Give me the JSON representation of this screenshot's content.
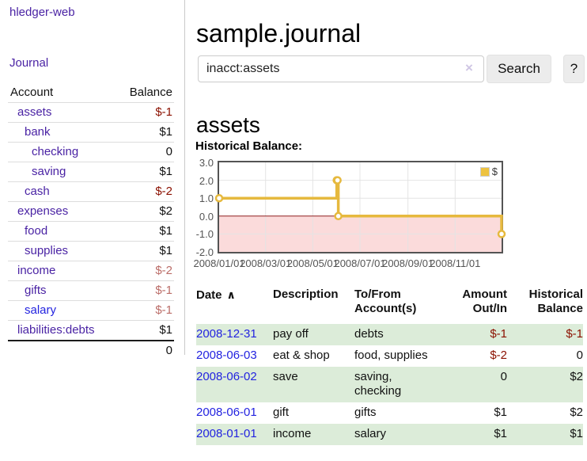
{
  "colors": {
    "accent_purple": "#4a23a4",
    "link_blue": "#2323e0",
    "negative_dark_red": "#8b1000",
    "negative_soft_red": "#bb6d68",
    "row_stripe_green": "#dcecd9"
  },
  "app": {
    "brand": "hledger-web",
    "nav_journal": "Journal"
  },
  "sidebar": {
    "table_headers": {
      "account": "Account",
      "balance": "Balance"
    },
    "accounts": [
      {
        "name": "assets",
        "balance": "$-1",
        "indent": 0,
        "bold": true,
        "balance_class": "neg"
      },
      {
        "name": "bank",
        "balance": "$1",
        "indent": 1,
        "bold": true,
        "balance_class": ""
      },
      {
        "name": "checking",
        "balance": "0",
        "indent": 2,
        "bold": true,
        "balance_class": ""
      },
      {
        "name": "saving",
        "balance": "$1",
        "indent": 2,
        "bold": true,
        "balance_class": ""
      },
      {
        "name": "cash",
        "balance": "$-2",
        "indent": 1,
        "bold": true,
        "balance_class": "neg"
      },
      {
        "name": "expenses",
        "balance": "$2",
        "indent": 0,
        "bold": false,
        "balance_class": ""
      },
      {
        "name": "food",
        "balance": "$1",
        "indent": 1,
        "bold": false,
        "balance_class": ""
      },
      {
        "name": "supplies",
        "balance": "$1",
        "indent": 1,
        "bold": false,
        "balance_class": ""
      },
      {
        "name": "income",
        "balance": "$-2",
        "indent": 0,
        "bold": false,
        "balance_class": "negsoft"
      },
      {
        "name": "gifts",
        "balance": "$-1",
        "indent": 1,
        "bold": false,
        "balance_class": "negsoft"
      },
      {
        "name": "salary",
        "balance": "$-1",
        "indent": 1,
        "bold": false,
        "blue": true,
        "balance_class": "negsoft"
      },
      {
        "name": "liabilities:debts",
        "balance": "$1",
        "indent": 0,
        "bold": false,
        "balance_class": ""
      }
    ],
    "total": "0"
  },
  "main": {
    "title": "sample.journal",
    "search": {
      "value": "inacct:assets",
      "clear_icon": "×",
      "search_button": "Search",
      "help_button": "?"
    },
    "account_heading": "assets",
    "chart_label": "Historical Balance:"
  },
  "chart_data": {
    "type": "line",
    "title": "Historical Balance:",
    "step": true,
    "grid": true,
    "legend_position": "top-right",
    "legend": [
      {
        "label": "$",
        "color": "#edc240"
      }
    ],
    "x_range": [
      "2008-01-01",
      "2008-12-31"
    ],
    "ylim": [
      -2,
      3
    ],
    "x_ticks": [
      "2008/01/01",
      "2008/03/01",
      "2008/05/01",
      "2008/07/01",
      "2008/09/01",
      "2008/11/01"
    ],
    "y_ticks": [
      "3.0",
      "2.0",
      "1.0",
      "0.0",
      "-1.0",
      "-2.0"
    ],
    "series": [
      {
        "name": "$",
        "points": [
          {
            "date": "2008-01-01",
            "value": 1
          },
          {
            "date": "2008-06-01",
            "value": 2
          },
          {
            "date": "2008-06-02",
            "value": 2
          },
          {
            "date": "2008-06-03",
            "value": 0
          },
          {
            "date": "2008-12-31",
            "value": -1
          }
        ]
      }
    ],
    "styles": {
      "line_color": "#e6b93e",
      "marker_fill": "#ffffff",
      "negative_region": "#fbdbdb",
      "zero_line": "#8f1f1f",
      "grid_line": "#e4e4e4",
      "border": "#545454",
      "tick_label": "#545454"
    }
  },
  "register_table": {
    "sort_icon": "∧",
    "headers": [
      "Date",
      "Description",
      "To/From Account(s)",
      "Amount Out/In",
      "Historical Balance"
    ],
    "rows": [
      {
        "date": "2008-12-31",
        "description": "pay off",
        "accounts": "debts",
        "amount": "$-1",
        "amount_class": "neg",
        "balance": "$-1",
        "balance_class": "neg"
      },
      {
        "date": "2008-06-03",
        "description": "eat & shop",
        "accounts": "food, supplies",
        "amount": "$-2",
        "amount_class": "neg",
        "balance": "0",
        "balance_class": ""
      },
      {
        "date": "2008-06-02",
        "description": "save",
        "accounts": "saving, checking",
        "amount": "0",
        "amount_class": "",
        "balance": "$2",
        "balance_class": ""
      },
      {
        "date": "2008-06-01",
        "description": "gift",
        "accounts": "gifts",
        "amount": "$1",
        "amount_class": "",
        "balance": "$2",
        "balance_class": ""
      },
      {
        "date": "2008-01-01",
        "description": "income",
        "accounts": "salary",
        "amount": "$1",
        "amount_class": "",
        "balance": "$1",
        "balance_class": ""
      }
    ]
  }
}
